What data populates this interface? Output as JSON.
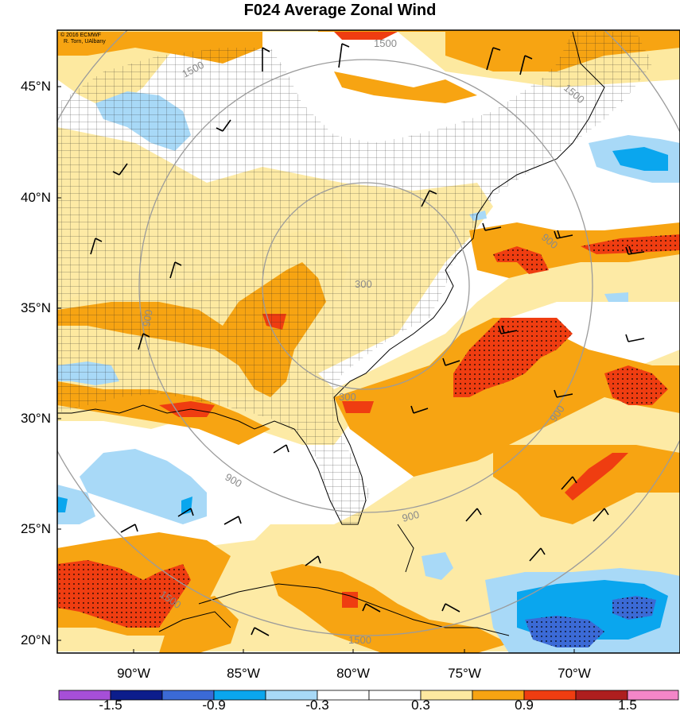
{
  "title": "F024 Average Zonal Wind",
  "credit": [
    "© 2016 ECMWF",
    "R. Torn, UAlbany"
  ],
  "lat_labels": [
    "45°N",
    "40°N",
    "35°N",
    "30°N",
    "25°N",
    "20°N"
  ],
  "lon_labels": [
    "90°W",
    "85°W",
    "80°W",
    "75°W",
    "70°W"
  ],
  "contour_labels": [
    "1500",
    "1500",
    "1500",
    "900",
    "900",
    "900",
    "900",
    "900",
    "300",
    "300",
    "1500",
    "1500"
  ],
  "colorbar": {
    "labels": [
      "-1.5",
      "-0.9",
      "-0.3",
      "0.3",
      "0.9",
      "1.5"
    ],
    "colors": [
      "#a64fd8",
      "#0c1d8c",
      "#3b6ad6",
      "#0aa6ee",
      "#a8d9f7",
      "#ffffff",
      "#ffffff",
      "#fde9a0",
      "#f7a412",
      "#ef3d11",
      "#ae1e1e",
      "#f486c8"
    ]
  },
  "colors": {
    "light_blue": "#a8d9f7",
    "blue": "#0aa6ee",
    "medium_blue": "#3b6ad6",
    "navy": "#0c1d8c",
    "light_yellow": "#fde9a0",
    "orange": "#f7a412",
    "red": "#ef3d11",
    "contour": "#9b9b9b"
  }
}
